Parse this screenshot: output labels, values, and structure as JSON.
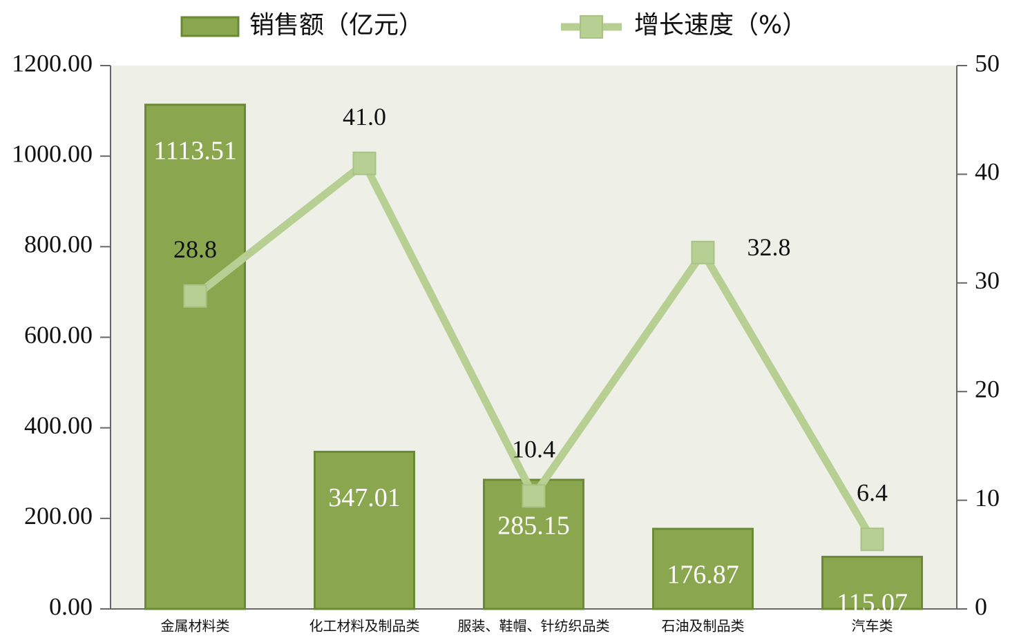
{
  "chart_data": {
    "type": "combo",
    "categories": [
      "金属材料类",
      "化工材料及制品类",
      "服装、鞋帽、针纺织品类",
      "石油及制品类",
      "汽车类"
    ],
    "series": [
      {
        "name": "销售额（亿元）",
        "type": "bar",
        "color": "#8aa64e",
        "values": [
          1113.51,
          347.01,
          285.15,
          176.87,
          115.07
        ]
      },
      {
        "name": "增长速度（%）",
        "type": "line",
        "axis": "y2",
        "color": "#b8cf94",
        "values": [
          28.8,
          41.0,
          10.4,
          32.8,
          6.4
        ],
        "value_labels": [
          "28.8",
          "41.0",
          "10.4",
          "32.8",
          "6.4"
        ]
      }
    ],
    "ylim": [
      0,
      1200
    ],
    "yticks": [
      {
        "value": 0,
        "label": "0.00"
      },
      {
        "value": 200,
        "label": "200.00"
      },
      {
        "value": 400,
        "label": "400.00"
      },
      {
        "value": 600,
        "label": "600.00"
      },
      {
        "value": 800,
        "label": "800.00"
      },
      {
        "value": 1000,
        "label": "1000.00"
      },
      {
        "value": 1200,
        "label": "1200.00"
      }
    ],
    "y2lim": [
      0,
      50
    ],
    "y2ticks": [
      0,
      10,
      20,
      30,
      40,
      50
    ],
    "plot_background": "#eef0e8",
    "legend": "top"
  }
}
